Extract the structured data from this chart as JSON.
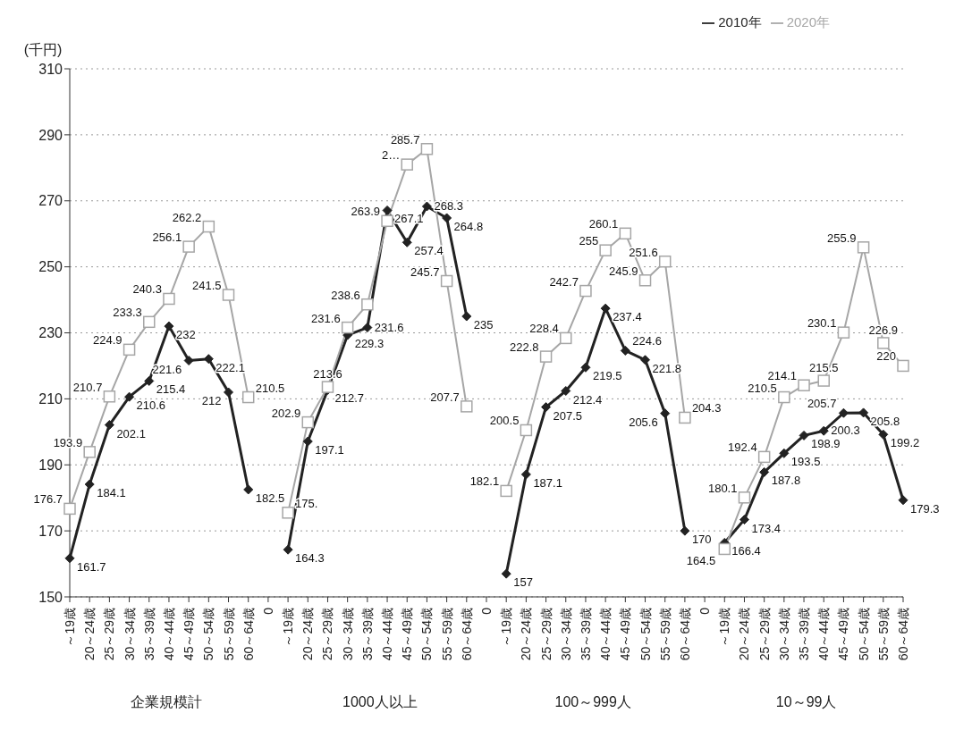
{
  "chart_data": {
    "type": "line",
    "ylabel": "(千円)",
    "categories": [
      "～19歳",
      "20～24歳",
      "25～29歳",
      "30～34歳",
      "35～39歳",
      "40～44歳",
      "45～49歳",
      "50～54歳",
      "55～59歳",
      "60～64歳",
      "0",
      "～19歳",
      "20～24歳",
      "25～29歳",
      "30～34歳",
      "35～39歳",
      "40～44歳",
      "45～49歳",
      "50～54歳",
      "55～59歳",
      "60～64歳",
      "0",
      "～19歳",
      "20～24歳",
      "25～29歳",
      "30～34歳",
      "35～39歳",
      "40～44歳",
      "45～49歳",
      "50～54歳",
      "55～59歳",
      "60～64歳",
      "0",
      "～19歳",
      "20～24歳",
      "25～29歳",
      "30～34歳",
      "35～39歳",
      "40～44歳",
      "45～49歳",
      "50～54歳",
      "55～59歳",
      "60～64歳"
    ],
    "series": [
      {
        "name": "2010年",
        "color": "#222222",
        "marker": "diamond",
        "values": [
          161.7,
          184.1,
          202.1,
          210.6,
          215.4,
          232,
          221.6,
          222.1,
          212,
          182.5,
          null,
          164.3,
          197.1,
          212.7,
          229.3,
          231.6,
          267.1,
          257.4,
          268.3,
          264.8,
          235,
          null,
          157,
          187.1,
          207.5,
          212.4,
          219.5,
          237.4,
          224.6,
          221.8,
          205.6,
          170,
          null,
          166.4,
          173.4,
          187.8,
          193.5,
          198.9,
          200.3,
          205.7,
          205.8,
          199.2,
          179.3
        ],
        "value_labels": [
          "161.7",
          "184.1",
          "202.1",
          "210.6",
          "215.4",
          "232",
          "221.6",
          "222.1",
          "212",
          "182.5",
          null,
          "164.3",
          "197.1",
          "212.7",
          "229.3",
          "231.6",
          "267.1",
          "257.4",
          "268.3",
          "264.8",
          "235",
          null,
          "157",
          "187.1",
          "207.5",
          "212.4",
          "219.5",
          "237.4",
          "224.6",
          "221.8",
          "205.6",
          "170",
          null,
          "166.4",
          "173.4",
          "187.8",
          "193.5",
          "198.9",
          "200.3",
          "205.7",
          "205.8",
          "199.2",
          "179.3"
        ]
      },
      {
        "name": "2020年",
        "color": "#a6a6a6",
        "marker": "square",
        "values": [
          176.7,
          193.9,
          210.7,
          224.9,
          233.3,
          240.3,
          256.1,
          262.2,
          241.5,
          210.5,
          null,
          175.5,
          202.9,
          213.6,
          231.6,
          238.6,
          263.9,
          281,
          285.7,
          245.7,
          207.7,
          null,
          182.1,
          200.5,
          222.8,
          228.4,
          242.7,
          255,
          260.1,
          245.9,
          251.6,
          204.3,
          null,
          164.5,
          180.1,
          192.4,
          210.5,
          214.1,
          215.5,
          230.1,
          255.9,
          226.9,
          220
        ],
        "value_labels": [
          "176.7",
          "193.9",
          "210.7",
          "224.9",
          "233.3",
          "240.3",
          "256.1",
          "262.2",
          "241.5",
          "210.5",
          null,
          "175.",
          "202.9",
          "213.6",
          "231.6",
          "238.6",
          "263.9",
          "2…",
          "285.7",
          "245.7",
          "207.7",
          null,
          "182.1",
          "200.5",
          "222.8",
          "228.4",
          "242.7",
          "255",
          "260.1",
          "245.9",
          "251.6",
          "204.3",
          null,
          "164.5",
          "180.1",
          "192.4",
          "210.5",
          "214.1",
          "215.5",
          "230.1",
          "255.9",
          "226.9",
          "220"
        ]
      }
    ],
    "ylim": [
      150,
      310
    ],
    "yticks": [
      150,
      170,
      190,
      210,
      230,
      250,
      270,
      290,
      310
    ],
    "grid": "y",
    "legend": "top right",
    "line_style": "solid",
    "annotations": [
      "企業規模計",
      "1000人以上",
      "100～999人",
      "10～99人"
    ]
  }
}
